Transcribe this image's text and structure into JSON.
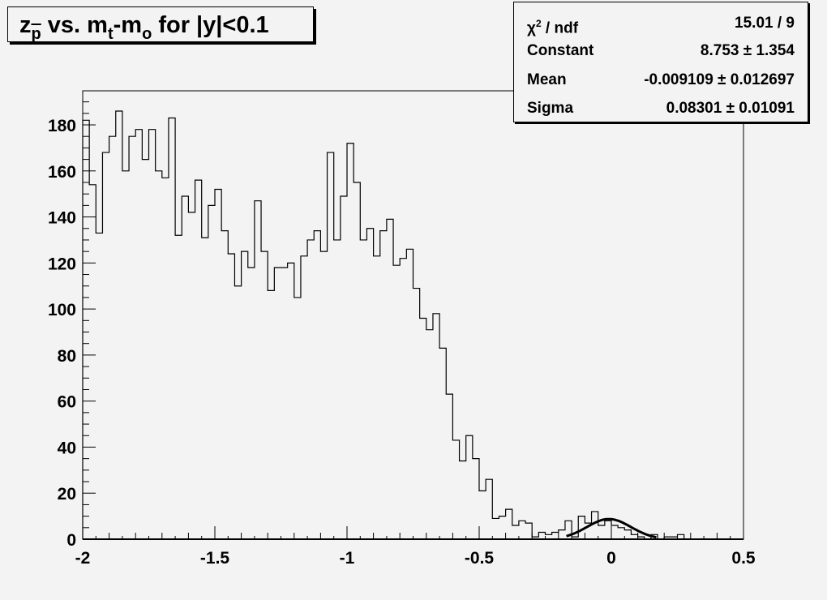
{
  "chart_data": {
    "type": "histogram",
    "title_segments": [
      {
        "text": "z",
        "style": "normal"
      },
      {
        "text": "p",
        "style": "sub-bar"
      },
      {
        "text": " vs. m",
        "style": "normal"
      },
      {
        "text": "t",
        "style": "sub"
      },
      {
        "text": "-m",
        "style": "normal"
      },
      {
        "text": "o",
        "style": "sub"
      },
      {
        "text": " for |y|<0.1",
        "style": "normal"
      }
    ],
    "xlim": [
      -2,
      0.5
    ],
    "ylim": [
      0,
      194.8
    ],
    "xticks": [
      "-2",
      "-1.5",
      "-1",
      "-0.5",
      "0",
      "0.5"
    ],
    "xtick_values": [
      -2,
      -1.5,
      -1,
      -0.5,
      0,
      0.5
    ],
    "yticks": [
      "0",
      "20",
      "40",
      "60",
      "80",
      "100",
      "120",
      "140",
      "160",
      "180"
    ],
    "ytick_values": [
      0,
      20,
      40,
      60,
      80,
      100,
      120,
      140,
      160,
      180
    ],
    "bin_width": 0.025,
    "bin_start": -2,
    "values": [
      182,
      154,
      133,
      168,
      175,
      186,
      160,
      175,
      178,
      165,
      178,
      160,
      157,
      183,
      132,
      149,
      142,
      156,
      131,
      145,
      152,
      134,
      124,
      110,
      125,
      118,
      147,
      125,
      108,
      118,
      118,
      120,
      105,
      123,
      130,
      134,
      125,
      168,
      130,
      149,
      172,
      155,
      130,
      135,
      123,
      134,
      139,
      119,
      122,
      126,
      109,
      96,
      91,
      98,
      83,
      63,
      43,
      34,
      45,
      35,
      21,
      26,
      9,
      10,
      13,
      6,
      8,
      7,
      1,
      3,
      2,
      3,
      4,
      8,
      1,
      10,
      7,
      12,
      6,
      8,
      6,
      5,
      4,
      2,
      1,
      0,
      2,
      0,
      1,
      1,
      2,
      0,
      0,
      0,
      0,
      0,
      0,
      0,
      0,
      0
    ],
    "fit": {
      "function": "gaus",
      "constant": 8.753,
      "mean": -0.009109,
      "sigma": 0.08301,
      "range": [
        -0.17,
        0.17
      ]
    },
    "grid": false,
    "line_color": "#000000",
    "background_color": "#f3f3f3"
  },
  "stats": {
    "chi2_label": "χ",
    "chi2_sup": "2",
    "chi2_suffix": " / ndf",
    "chi2_value": "15.01 / 9",
    "constant_label": "Constant",
    "constant_value": "8.753 ± 1.354",
    "mean_label": "Mean",
    "mean_value": "-0.009109 ± 0.012697",
    "sigma_label": "Sigma",
    "sigma_value": "0.08301 ± 0.01091"
  }
}
